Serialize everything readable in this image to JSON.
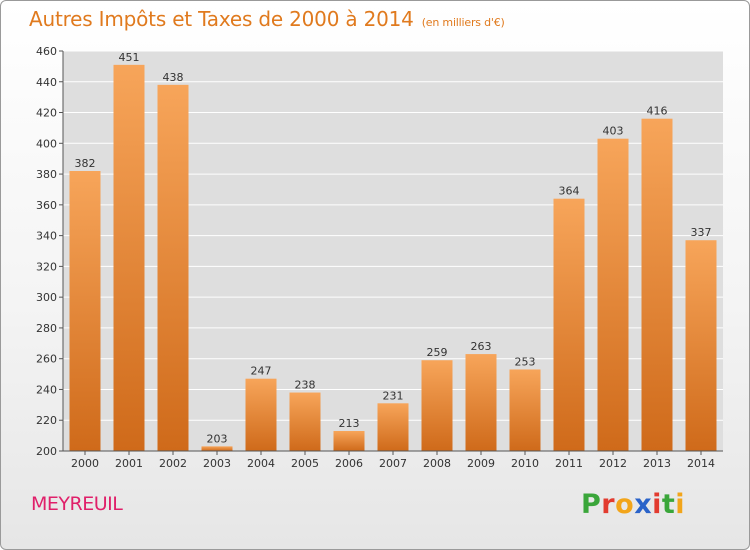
{
  "chart_data": {
    "type": "bar",
    "title": "Autres Impôts et Taxes de 2000 à 2014",
    "unit_note": "(en milliers d'€)",
    "categories": [
      "2000",
      "2001",
      "2002",
      "2003",
      "2004",
      "2005",
      "2006",
      "2007",
      "2008",
      "2009",
      "2010",
      "2011",
      "2012",
      "2013",
      "2014"
    ],
    "values": [
      382,
      451,
      438,
      203,
      247,
      238,
      213,
      231,
      259,
      263,
      253,
      364,
      403,
      416,
      337
    ],
    "ylim": [
      200,
      460
    ],
    "yticks": [
      200,
      220,
      240,
      260,
      280,
      300,
      320,
      340,
      360,
      380,
      400,
      420,
      440,
      460
    ],
    "xlabel": "",
    "ylabel": "",
    "grid": true
  },
  "commune": "MEYREUIL",
  "logo": {
    "letters": [
      "P",
      "r",
      "o",
      "x",
      "i",
      "t",
      "i"
    ],
    "colors": [
      "#3aa63a",
      "#e23b2f",
      "#f2a51a",
      "#2a63c9",
      "#e23b2f",
      "#3aa63a",
      "#f2a51a"
    ]
  },
  "colors": {
    "bar_top": "#f7a55a",
    "bar_bottom": "#cf6a1a",
    "accent": "#e07a1e",
    "grid": "#ffffff"
  }
}
